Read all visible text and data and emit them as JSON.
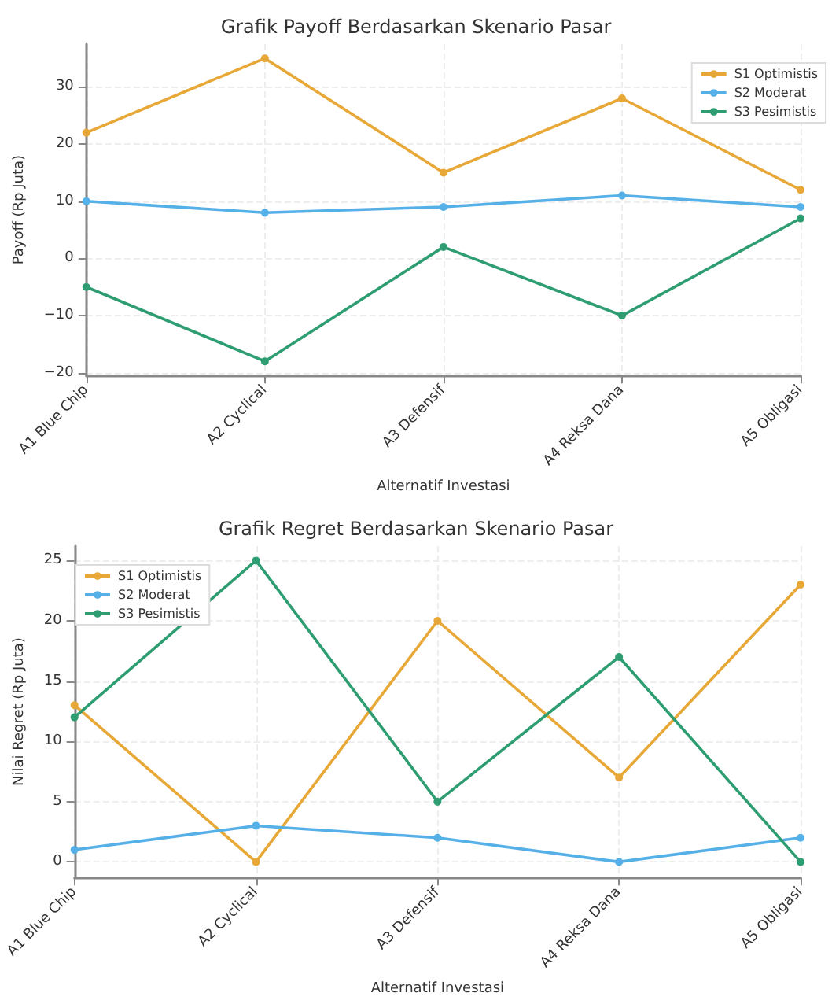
{
  "chart_data": [
    {
      "type": "line",
      "title": "Grafik Payoff Berdasarkan Skenario Pasar",
      "xlabel": "Alternatif Investasi",
      "ylabel": "Payoff (Rp Juta)",
      "categories": [
        "A1 Blue Chip",
        "A2 Cyclical",
        "A3 Defensif",
        "A4 Reksa Dana",
        "A5 Obligasi"
      ],
      "series": [
        {
          "name": "S1 Optimistis",
          "color": "#e8a838",
          "values": [
            22,
            35,
            15,
            28,
            12
          ]
        },
        {
          "name": "S2 Moderat",
          "color": "#56b0e8",
          "values": [
            10,
            8,
            9,
            11,
            9
          ]
        },
        {
          "name": "S3 Pesimistis",
          "color": "#2e9e72",
          "values": [
            -5,
            -18,
            2,
            -10,
            7
          ]
        }
      ],
      "ylim": [
        -20.5,
        37.5
      ],
      "yticks": [
        -20,
        -10,
        0,
        10,
        20,
        30
      ],
      "grid": true,
      "legend": "top right",
      "marker": "circle",
      "line_style": "solid"
    },
    {
      "type": "line",
      "title": "Grafik Regret Berdasarkan Skenario Pasar",
      "xlabel": "Alternatif Investasi",
      "ylabel": "Nilai Regret (Rp Juta)",
      "categories": [
        "A1 Blue Chip",
        "A2 Cyclical",
        "A3 Defensif",
        "A4 Reksa Dana",
        "A5 Obligasi"
      ],
      "series": [
        {
          "name": "S1 Optimistis",
          "color": "#e8a838",
          "values": [
            13,
            0,
            20,
            7,
            23
          ]
        },
        {
          "name": "S2 Moderat",
          "color": "#56b0e8",
          "values": [
            1,
            3,
            2,
            0,
            2
          ]
        },
        {
          "name": "S3 Pesimistis",
          "color": "#2e9e72",
          "values": [
            12,
            25,
            5,
            17,
            0
          ]
        }
      ],
      "ylim": [
        -1.3,
        26.2
      ],
      "yticks": [
        0,
        5,
        10,
        15,
        20,
        25
      ],
      "grid": true,
      "legend": "top left",
      "marker": "circle",
      "line_style": "solid"
    }
  ]
}
